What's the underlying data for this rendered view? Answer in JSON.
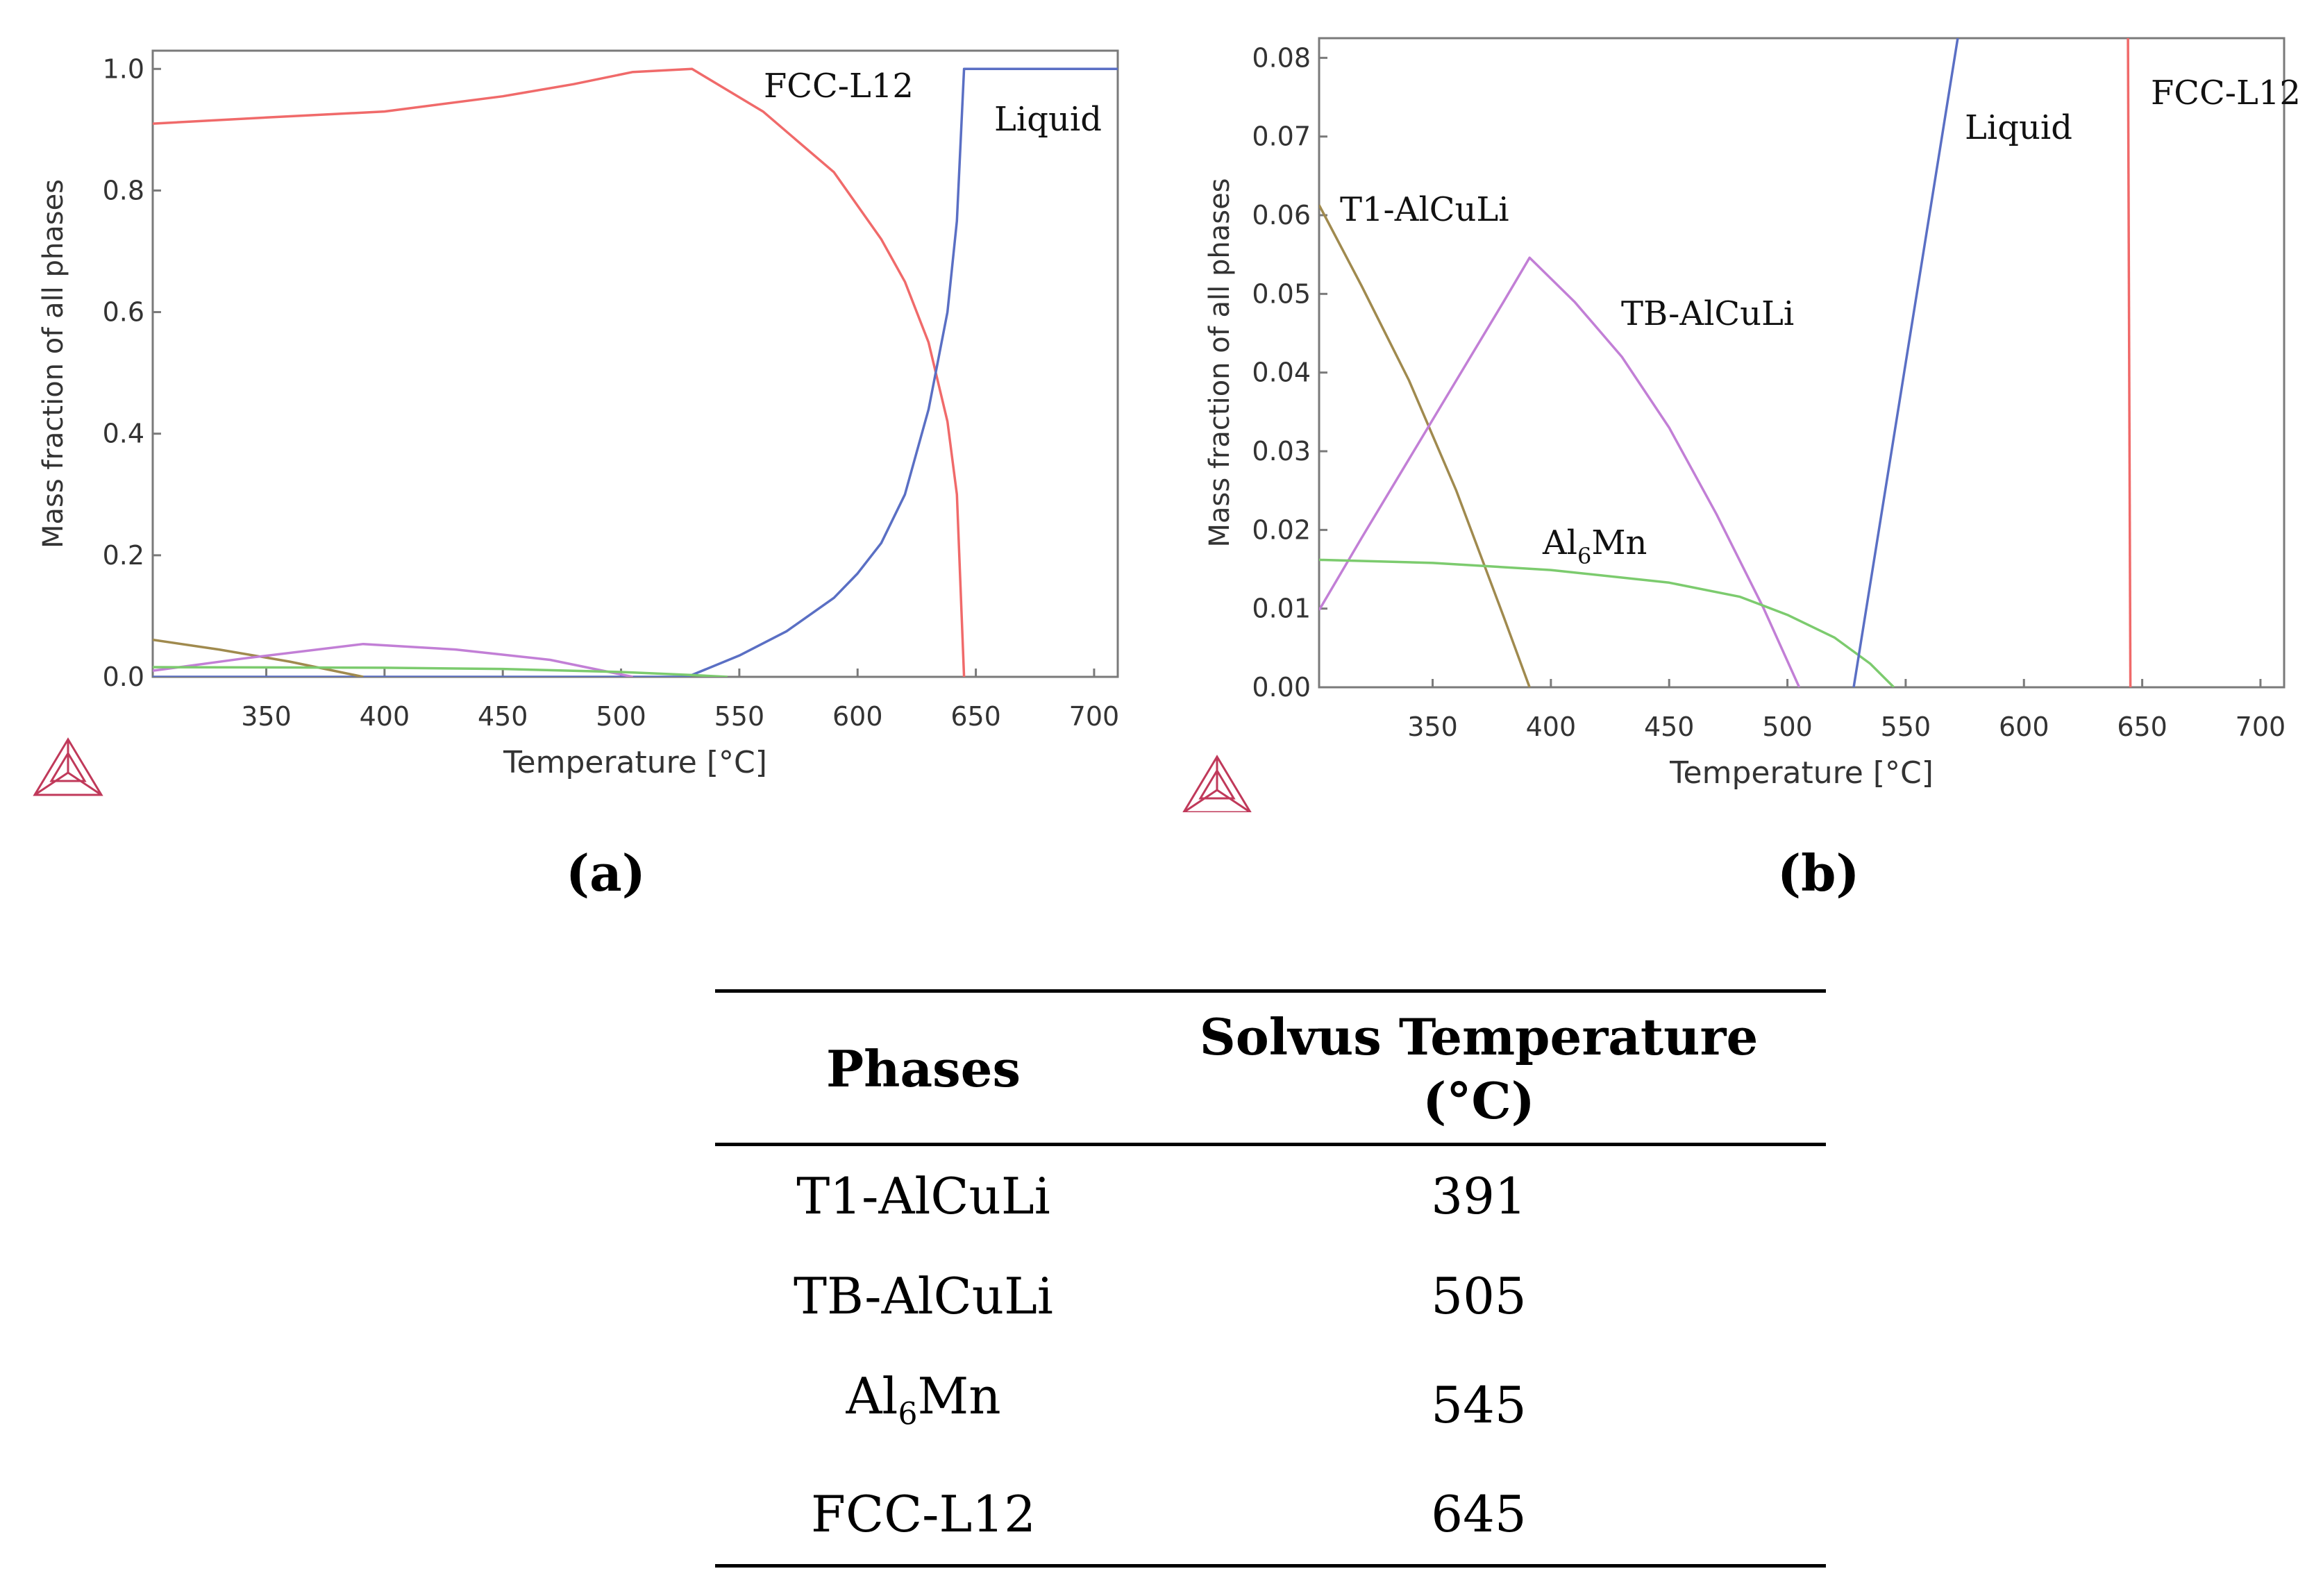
{
  "chart_data": [
    {
      "id": "a",
      "type": "line",
      "caption": "(a)",
      "xlabel": "Temperature [°C]",
      "ylabel": "Mass fraction of all phases",
      "xlim": [
        302,
        710
      ],
      "ylim": [
        0,
        1.03
      ],
      "xticks": [
        "350",
        "400",
        "450",
        "500",
        "550",
        "600",
        "650",
        "700"
      ],
      "yticks": [
        "0.0",
        "0.2",
        "0.4",
        "0.6",
        "0.8",
        "1.0"
      ],
      "grid": false,
      "series": [
        {
          "name": "FCC-L12",
          "label": "FCC-L12",
          "color": "#f06a6a",
          "x": [
            302,
            350,
            400,
            450,
            480,
            505,
            530,
            560,
            590,
            610,
            620,
            630,
            638,
            642,
            645
          ],
          "y": [
            0.91,
            0.92,
            0.93,
            0.955,
            0.975,
            0.995,
            1.0,
            0.93,
            0.83,
            0.72,
            0.65,
            0.55,
            0.42,
            0.3,
            0.0
          ]
        },
        {
          "name": "Liquid",
          "label": "Liquid",
          "color": "#5a6fc4",
          "x": [
            302,
            528,
            550,
            570,
            590,
            600,
            610,
            620,
            630,
            638,
            642,
            645,
            710
          ],
          "y": [
            0,
            0,
            0.035,
            0.075,
            0.13,
            0.17,
            0.22,
            0.3,
            0.44,
            0.6,
            0.75,
            1.0,
            1.0
          ]
        },
        {
          "name": "T1-AlCuLi",
          "label": "",
          "color": "#a08a4e",
          "x": [
            302,
            330,
            360,
            391
          ],
          "y": [
            0.061,
            0.045,
            0.025,
            0.0
          ]
        },
        {
          "name": "TB-AlCuLi",
          "label": "",
          "color": "#c27fd6",
          "x": [
            302,
            340,
            391,
            430,
            470,
            505
          ],
          "y": [
            0.01,
            0.03,
            0.054,
            0.045,
            0.028,
            0.0
          ]
        },
        {
          "name": "Al6Mn",
          "label": "",
          "color": "#7ccb6e",
          "x": [
            302,
            400,
            450,
            500,
            530,
            545
          ],
          "y": [
            0.016,
            0.015,
            0.013,
            0.008,
            0.003,
            0.0
          ]
        }
      ]
    },
    {
      "id": "b",
      "type": "line",
      "caption": "(b)",
      "xlabel": "Temperature [°C]",
      "ylabel": "Mass fraction of all phases",
      "xlim": [
        302,
        710
      ],
      "ylim": [
        0,
        0.0825
      ],
      "xticks": [
        "350",
        "400",
        "450",
        "500",
        "550",
        "600",
        "650",
        "700"
      ],
      "yticks": [
        "0.00",
        "0.01",
        "0.02",
        "0.03",
        "0.04",
        "0.05",
        "0.06",
        "0.07",
        "0.08"
      ],
      "grid": false,
      "series": [
        {
          "name": "T1-AlCuLi",
          "label": "T1-AlCuLi",
          "color": "#a08a4e",
          "x": [
            302,
            320,
            340,
            360,
            380,
            391
          ],
          "y": [
            0.0613,
            0.051,
            0.039,
            0.025,
            0.009,
            0.0
          ]
        },
        {
          "name": "TB-AlCuLi",
          "label": "TB-AlCuLi",
          "color": "#c27fd6",
          "x": [
            302,
            320,
            340,
            360,
            380,
            391,
            410,
            430,
            450,
            470,
            490,
            505
          ],
          "y": [
            0.0098,
            0.019,
            0.029,
            0.039,
            0.049,
            0.0546,
            0.049,
            0.042,
            0.033,
            0.022,
            0.01,
            0.0
          ]
        },
        {
          "name": "Al6Mn",
          "label": "Al",
          "label_sub": "6",
          "label_tail": "Mn",
          "color": "#7ccb6e",
          "x": [
            302,
            350,
            400,
            450,
            480,
            500,
            520,
            535,
            545
          ],
          "y": [
            0.0162,
            0.0158,
            0.0149,
            0.0133,
            0.0115,
            0.0092,
            0.0063,
            0.003,
            0.0
          ]
        },
        {
          "name": "Liquid",
          "label": "Liquid",
          "color": "#5a6fc4",
          "x": [
            528,
            572
          ],
          "y": [
            0.0,
            0.0825
          ]
        },
        {
          "name": "FCC-L12",
          "label": "FCC-L12",
          "color": "#f06a6a",
          "x": [
            645,
            644
          ],
          "y": [
            0.0,
            0.0825
          ]
        }
      ]
    }
  ],
  "table": {
    "headers": [
      "Phases",
      "Solvus Temperature",
      "(°C)"
    ],
    "rows": [
      {
        "phase": "T1-AlCuLi",
        "temp": "391"
      },
      {
        "phase": "TB-AlCuLi",
        "temp": "505"
      },
      {
        "phase": "Al",
        "phase_sub": "6",
        "phase_tail": "Mn",
        "temp": "545"
      },
      {
        "phase": "FCC-L12",
        "temp": "645"
      }
    ]
  }
}
